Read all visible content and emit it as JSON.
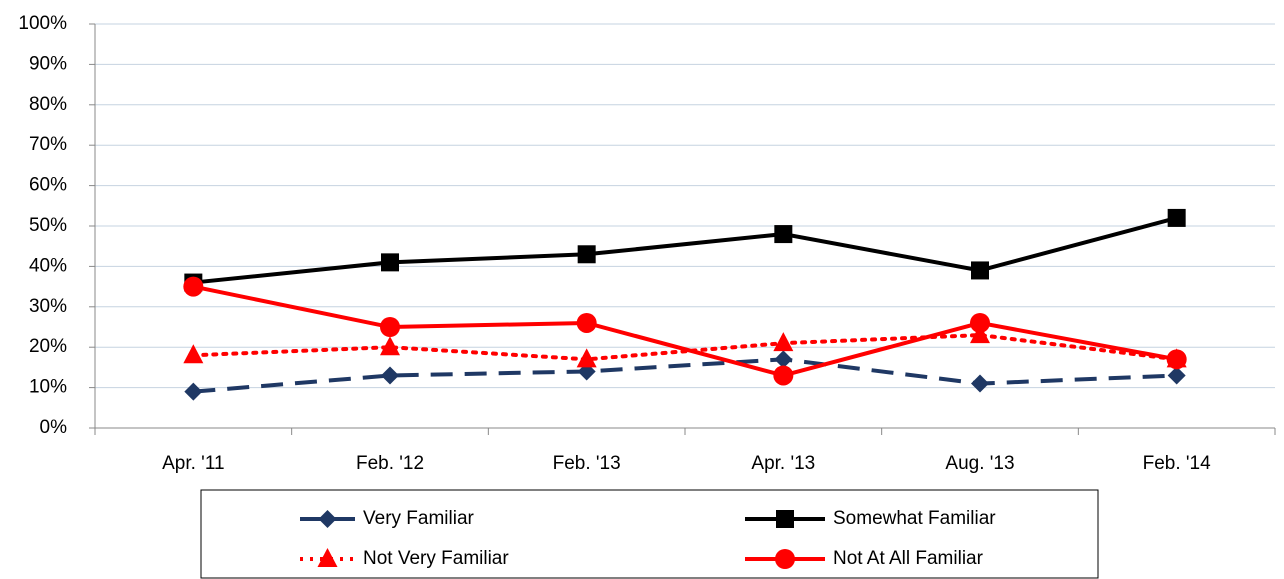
{
  "chart_data": {
    "type": "line",
    "categories": [
      "Apr. '11",
      "Feb. '12",
      "Feb. '13",
      "Apr. '13",
      "Aug. '13",
      "Feb. '14"
    ],
    "series": [
      {
        "name": "Very Familiar",
        "color": "#1f3864",
        "dash": "dashed",
        "marker": "diamond",
        "values": [
          9,
          13,
          14,
          17,
          11,
          13
        ]
      },
      {
        "name": "Somewhat Familiar",
        "color": "#000000",
        "dash": "solid",
        "marker": "square",
        "values": [
          36,
          41,
          43,
          48,
          39,
          52
        ]
      },
      {
        "name": "Not Very Familiar",
        "color": "#ff0000",
        "dash": "dotted",
        "marker": "triangle",
        "values": [
          18,
          20,
          17,
          21,
          23,
          17
        ]
      },
      {
        "name": "Not At All Familiar",
        "color": "#ff0000",
        "dash": "solid",
        "marker": "circle",
        "values": [
          35,
          25,
          26,
          13,
          26,
          17
        ]
      }
    ],
    "ylim": [
      0,
      100
    ],
    "yticks": [
      {
        "value": 0,
        "label": "0%"
      },
      {
        "value": 10,
        "label": "10%"
      },
      {
        "value": 20,
        "label": "20%"
      },
      {
        "value": 30,
        "label": "30%"
      },
      {
        "value": 40,
        "label": "40%"
      },
      {
        "value": 50,
        "label": "50%"
      },
      {
        "value": 60,
        "label": "60%"
      },
      {
        "value": 70,
        "label": "70%"
      },
      {
        "value": 80,
        "label": "80%"
      },
      {
        "value": 90,
        "label": "90%"
      },
      {
        "value": 100,
        "label": "100%"
      }
    ],
    "grid": true,
    "legend": "bottom"
  }
}
